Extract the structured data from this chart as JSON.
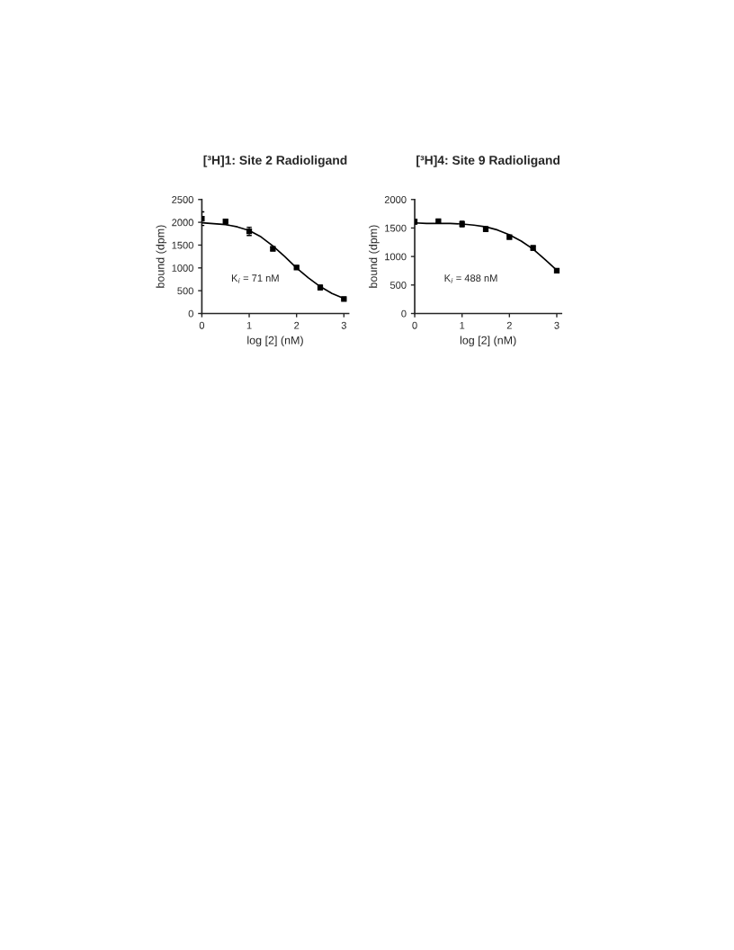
{
  "chart_data": [
    {
      "type": "scatter",
      "title": "[³H]1: Site 2 Radioligand",
      "xlabel": "log [2] (nM)",
      "ylabel": "bound (dpm)",
      "xlim": [
        0,
        3.1
      ],
      "xticks": [
        0,
        1,
        2,
        3
      ],
      "ylim": [
        0,
        2500
      ],
      "yticks": [
        0,
        500,
        1000,
        1500,
        2000,
        2500
      ],
      "grid": false,
      "annotations": [
        "K$_{i}$ = 71 nM"
      ],
      "series": [
        {
          "color": "#000000",
          "marker": "square",
          "x": [
            0,
            0.5,
            1,
            1.5,
            2,
            2.5,
            3
          ],
          "values": [
            2080,
            2020,
            1800,
            1420,
            1010,
            570,
            320
          ],
          "errors": [
            150,
            20,
            90,
            40,
            30,
            50,
            20
          ]
        },
        {
          "type": "line",
          "color": "#000000",
          "marker": "none",
          "x": [
            0,
            0.25,
            0.5,
            0.75,
            1,
            1.25,
            1.5,
            1.75,
            2,
            2.25,
            2.5,
            2.75,
            3
          ],
          "values": [
            1990,
            1970,
            1950,
            1900,
            1820,
            1680,
            1480,
            1250,
            1000,
            780,
            590,
            440,
            330
          ]
        }
      ]
    },
    {
      "type": "scatter",
      "title": "[³H]4: Site 9 Radioligand",
      "xlabel": "log [2] (nM)",
      "ylabel": "bound (dpm)",
      "xlim": [
        0,
        3.1
      ],
      "xticks": [
        0,
        1,
        2,
        3
      ],
      "ylim": [
        0,
        2000
      ],
      "yticks": [
        0,
        500,
        1000,
        1500,
        2000
      ],
      "grid": false,
      "annotations": [
        "K$_{i}$ = 488 nM"
      ],
      "series": [
        {
          "color": "#000000",
          "marker": "square",
          "x": [
            0,
            0.5,
            1,
            1.5,
            2,
            2.5,
            3
          ],
          "values": [
            1610,
            1620,
            1570,
            1480,
            1340,
            1150,
            750
          ],
          "errors": [
            40,
            20,
            50,
            40,
            20,
            40,
            20
          ]
        },
        {
          "type": "line",
          "color": "#000000",
          "marker": "none",
          "x": [
            0,
            0.25,
            0.5,
            0.75,
            1,
            1.25,
            1.5,
            1.75,
            2,
            2.25,
            2.5,
            2.75,
            3
          ],
          "values": [
            1590,
            1580,
            1580,
            1580,
            1570,
            1550,
            1520,
            1465,
            1380,
            1270,
            1130,
            950,
            760
          ]
        }
      ]
    }
  ]
}
